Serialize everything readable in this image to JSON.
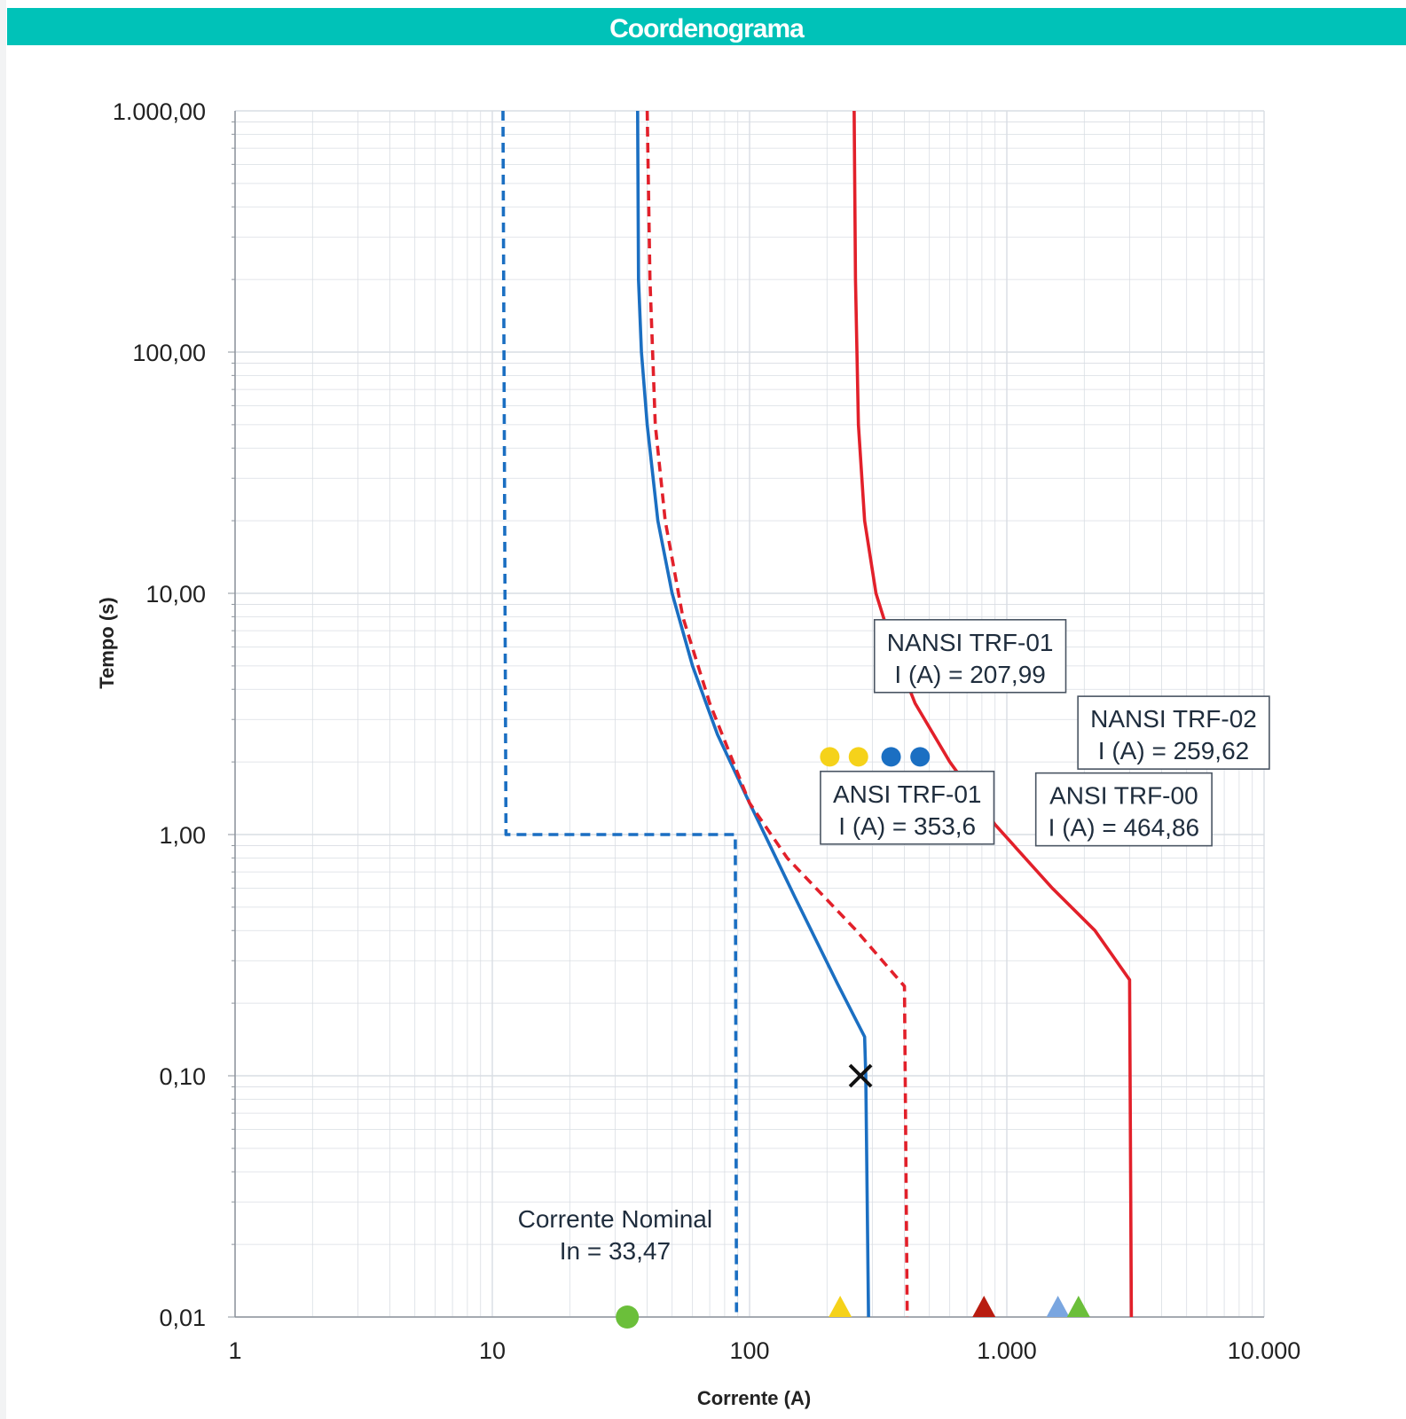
{
  "title": "Coordenograma",
  "colors": {
    "title_bar": "#00c2b8",
    "blue": "#1b6fc2",
    "red": "#e2202a",
    "grid": "#d9dde3",
    "yellow": "#f5d21a",
    "green": "#6bbf3a",
    "dark_red": "#b81c10",
    "light_blue": "#7aa6e0"
  },
  "chart_data": {
    "type": "line",
    "x_scale": "log",
    "y_scale": "log",
    "xlabel": "Corrente (A)",
    "ylabel": "Tempo (s)",
    "xlim": [
      1,
      10000
    ],
    "ylim": [
      0.01,
      1000
    ],
    "grid": true,
    "x_ticks": [
      {
        "value": 1,
        "label": "1"
      },
      {
        "value": 10,
        "label": "10"
      },
      {
        "value": 100,
        "label": "100"
      },
      {
        "value": 1000,
        "label": "1.000"
      },
      {
        "value": 10000,
        "label": "10.000"
      }
    ],
    "y_ticks": [
      {
        "value": 0.01,
        "label": "0,01"
      },
      {
        "value": 0.1,
        "label": "0,10"
      },
      {
        "value": 1,
        "label": "1,00"
      },
      {
        "value": 10,
        "label": "10,00"
      },
      {
        "value": 100,
        "label": "100,00"
      },
      {
        "value": 1000,
        "label": "1.000,00"
      }
    ],
    "series": [
      {
        "color": "#1b6fc2",
        "style": "solid",
        "points": [
          [
            36.7,
            1000
          ],
          [
            37,
            200
          ],
          [
            38,
            100
          ],
          [
            40,
            50
          ],
          [
            44,
            20
          ],
          [
            50,
            10
          ],
          [
            60,
            5
          ],
          [
            75,
            2.6
          ],
          [
            100,
            1.35
          ],
          [
            150,
            0.55
          ],
          [
            220,
            0.24
          ],
          [
            280,
            0.145
          ],
          [
            283,
            0.1
          ],
          [
            290,
            0.01
          ]
        ]
      },
      {
        "color": "#1b6fc2",
        "style": "dashed",
        "points": [
          [
            11,
            1000
          ],
          [
            11.3,
            1
          ],
          [
            88,
            1
          ],
          [
            89,
            0.01
          ]
        ]
      },
      {
        "color": "#e2202a",
        "style": "dashed",
        "points": [
          [
            40,
            1000
          ],
          [
            41,
            200
          ],
          [
            43,
            50
          ],
          [
            47,
            20
          ],
          [
            55,
            8
          ],
          [
            70,
            3.5
          ],
          [
            100,
            1.35
          ],
          [
            140,
            0.8
          ],
          [
            260,
            0.4
          ],
          [
            400,
            0.235
          ],
          [
            410,
            0.01
          ]
        ]
      },
      {
        "color": "#e2202a",
        "style": "solid",
        "points": [
          [
            255,
            1000
          ],
          [
            258,
            200
          ],
          [
            265,
            50
          ],
          [
            280,
            20
          ],
          [
            310,
            10
          ],
          [
            360,
            6
          ],
          [
            440,
            3.5
          ],
          [
            600,
            2
          ],
          [
            900,
            1.1
          ],
          [
            1500,
            0.6
          ],
          [
            2200,
            0.4
          ],
          [
            3000,
            0.25
          ],
          [
            3050,
            0.01
          ]
        ]
      }
    ],
    "markers": [
      {
        "shape": "x",
        "x": 270,
        "y": 0.1,
        "color": "#111111"
      },
      {
        "shape": "circle",
        "x": 205,
        "y": 2.1,
        "color": "#f5d21a"
      },
      {
        "shape": "circle",
        "x": 265,
        "y": 2.1,
        "color": "#f5d21a"
      },
      {
        "shape": "circle",
        "x": 355,
        "y": 2.1,
        "color": "#1b6fc2"
      },
      {
        "shape": "circle",
        "x": 460,
        "y": 2.1,
        "color": "#1b6fc2"
      },
      {
        "shape": "circle",
        "x": 33.47,
        "y": 0.01,
        "color": "#6bbf3a"
      },
      {
        "shape": "triangle",
        "x": 225,
        "y": 0.01,
        "color": "#f5d21a"
      },
      {
        "shape": "triangle",
        "x": 815,
        "y": 0.01,
        "color": "#b81c10"
      },
      {
        "shape": "triangle",
        "x": 1580,
        "y": 0.01,
        "color": "#7aa6e0"
      },
      {
        "shape": "triangle",
        "x": 1900,
        "y": 0.01,
        "color": "#6bbf3a"
      }
    ],
    "annotations": [
      {
        "lines": [
          "NANSI TRF-01",
          "I (A) = 207,99"
        ],
        "boxed": true,
        "x": 720,
        "y": 5.4
      },
      {
        "lines": [
          "NANSI TRF-02",
          "I (A) = 259,62"
        ],
        "boxed": true,
        "x": 4450,
        "y": 2.6
      },
      {
        "lines": [
          "ANSI TRF-01",
          "I (A) = 353,6"
        ],
        "boxed": true,
        "x": 410,
        "y": 1.27
      },
      {
        "lines": [
          "ANSI TRF-00",
          "I (A) = 464,86"
        ],
        "boxed": true,
        "x": 2850,
        "y": 1.25
      },
      {
        "lines": [
          "Corrente Nominal",
          "In = 33,47"
        ],
        "boxed": false,
        "x": 30,
        "y": 0.022
      }
    ]
  }
}
